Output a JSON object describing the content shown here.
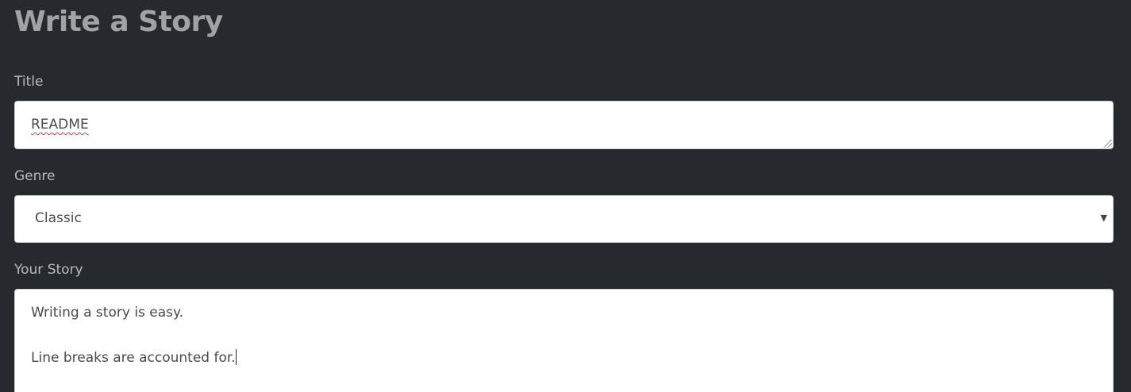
{
  "page": {
    "title": "Write a Story"
  },
  "form": {
    "title_label": "Title",
    "title_value": "README",
    "genre_label": "Genre",
    "genre_value": "Classic",
    "story_label": "Your Story",
    "story_lines": [
      "Writing a story is easy.",
      "Line breaks are accounted for."
    ]
  },
  "icons": {
    "dropdown": "chevron-down-icon",
    "resize": "resize-handle-icon"
  }
}
